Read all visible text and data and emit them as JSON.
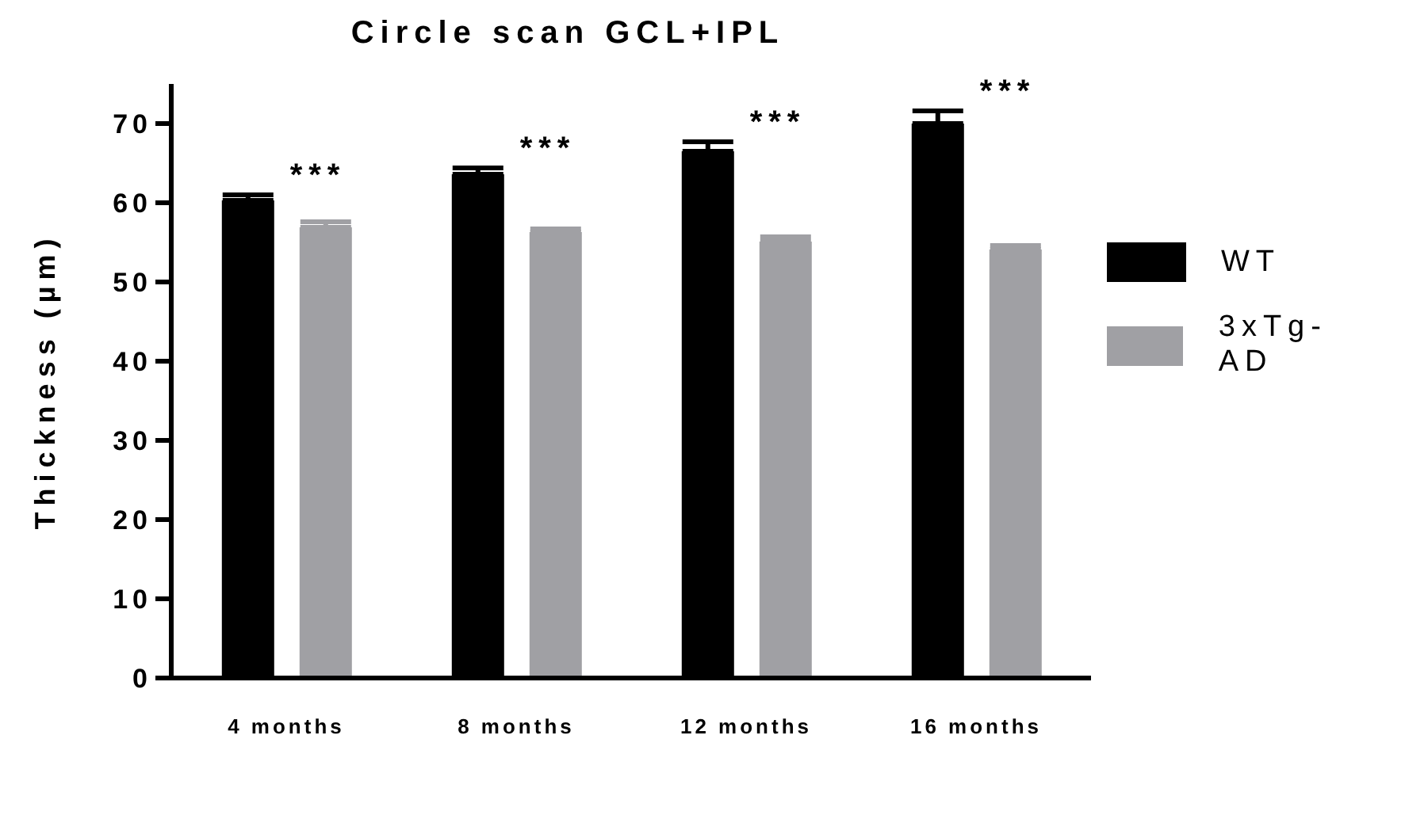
{
  "chart_data": {
    "type": "bar",
    "title": "Circle scan GCL+IPL",
    "ylabel": "Thickness (µm)",
    "categories": [
      "4 months",
      "8 months",
      "12 months",
      "16 months"
    ],
    "series": [
      {
        "name": "WT",
        "color": "#000000",
        "values": [
          60.3,
          63.6,
          66.5,
          70.0
        ],
        "errors": [
          0.7,
          0.8,
          1.2,
          1.6
        ]
      },
      {
        "name": "3xTg-AD",
        "color": "#a0a0a4",
        "values": [
          56.9,
          56.3,
          55.1,
          54.1
        ],
        "errors": [
          0.7,
          0.4,
          0.6,
          0.5
        ]
      }
    ],
    "ylim": [
      0,
      75
    ],
    "yticks": [
      0,
      10,
      20,
      30,
      40,
      50,
      60,
      70
    ],
    "grid": false,
    "legend": "right",
    "annotations": [
      "***",
      "***",
      "***",
      "***"
    ]
  }
}
